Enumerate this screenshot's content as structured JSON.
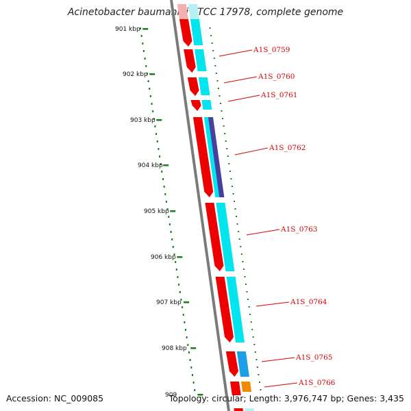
{
  "title": "Acinetobacter baumannii ATCC 17978, complete genome",
  "footer": {
    "accession": "Accession: NC_009085",
    "topology": "Topology: circular; Length: 3,976,747 bp; Genes: 3,435"
  },
  "ruler": {
    "ticks": [
      "901 kbp",
      "902 kbp",
      "903 kbp",
      "904 kbp",
      "905 kbp",
      "906 kbp",
      "907 kbp",
      "908 kbp",
      "909"
    ]
  },
  "genes": [
    {
      "name": "A1S_0759"
    },
    {
      "name": "A1S_0760"
    },
    {
      "name": "A1S_0761"
    },
    {
      "name": "A1S_0762"
    },
    {
      "name": "A1S_0763"
    },
    {
      "name": "A1S_0764"
    },
    {
      "name": "A1S_0765"
    },
    {
      "name": "A1S_0766"
    }
  ],
  "colors": {
    "backbone": "#7a7a7a",
    "gene_red": "#ee0000",
    "gene_light_red": "#f7b0b0",
    "gene_cyan": "#00e5ee",
    "gene_pale_cyan": "#b5f1f4",
    "gene_purple": "#4b3f9e",
    "gene_blue": "#1aa0e6",
    "gene_orange": "#f28a00",
    "tick_green": "#1a7d1a",
    "label_red": "#d40000"
  }
}
